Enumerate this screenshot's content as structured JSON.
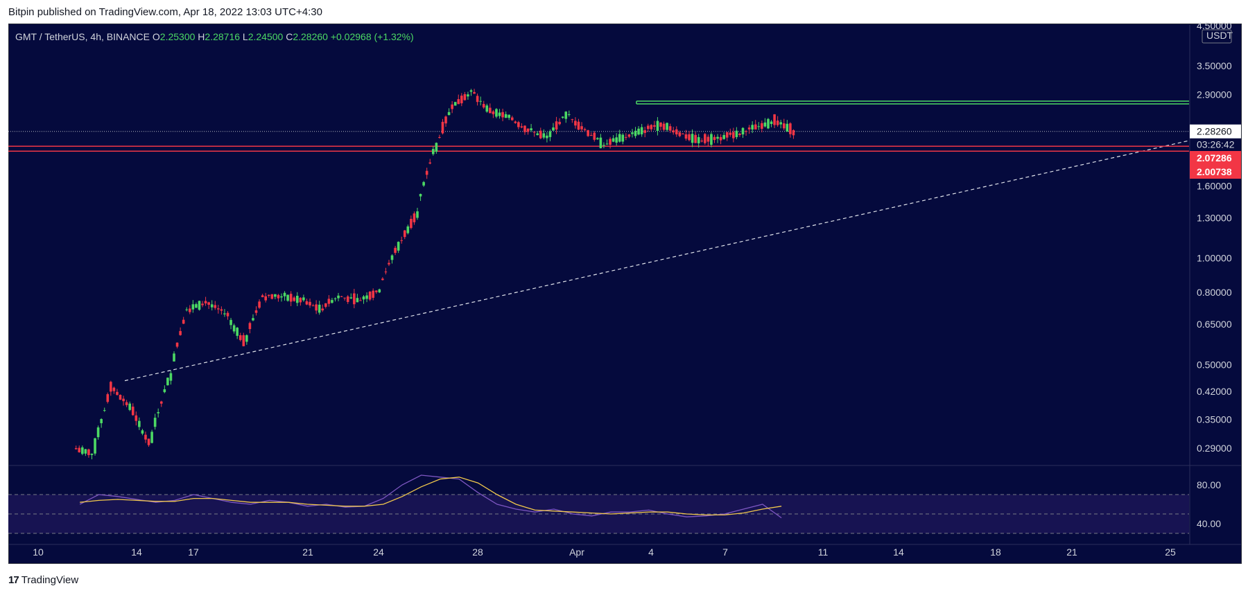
{
  "header": {
    "caption": "Bitpin published on TradingView.com, Apr 18, 2022 13:03 UTC+4:30"
  },
  "legend": {
    "symbol": "GMT / TetherUS, 4h, BINANCE",
    "open_label": "O",
    "open": "2.25300",
    "high_label": "H",
    "high": "2.28716",
    "low_label": "L",
    "low": "2.24500",
    "close_label": "C",
    "close": "2.28260",
    "change": "+0.02968 (+1.32%)"
  },
  "footer": {
    "brand": "TradingView"
  },
  "colors": {
    "background": "#050a3d",
    "up": "#4cd964",
    "down": "#f23645",
    "resistance": "#4cd964",
    "support": "#f23645",
    "rsi": "#7e57c2",
    "rsi_ma": "#f2c94c"
  },
  "chart_data": [
    {
      "type": "candlestick",
      "title": "GMT / TetherUS, 4h, BINANCE",
      "currency": "USDT",
      "scale": "log",
      "ylim": [
        0.26,
        4.5
      ],
      "x_ticks": [
        "10",
        "14",
        "17",
        "21",
        "24",
        "28",
        "Apr",
        "4",
        "7",
        "11",
        "14",
        "18",
        "21",
        "25"
      ],
      "y_ticks": [
        "4.50000",
        "3.50000",
        "2.90000",
        "1.60000",
        "1.30000",
        "1.00000",
        "0.80000",
        "0.65000",
        "0.50000",
        "0.42000",
        "0.35000",
        "0.29000"
      ],
      "price_series_approx": {
        "dates": [
          "Mar 12",
          "Mar 13",
          "Mar 14",
          "Mar 15",
          "Mar 16",
          "Mar 17",
          "Mar 18",
          "Mar 19",
          "Mar 20",
          "Mar 21",
          "Mar 22",
          "Mar 23",
          "Mar 24",
          "Mar 25",
          "Mar 26",
          "Mar 27",
          "Mar 28",
          "Mar 29",
          "Mar 30",
          "Mar 31",
          "Apr 1",
          "Apr 2",
          "Apr 3",
          "Apr 4",
          "Apr 5",
          "Apr 6",
          "Apr 7",
          "Apr 8",
          "Apr 9",
          "Apr 10",
          "Apr 11",
          "Apr 12",
          "Apr 13",
          "Apr 14",
          "Apr 15",
          "Apr 16",
          "Apr 17",
          "Apr 18"
        ],
        "close": [
          0.28,
          0.43,
          0.38,
          0.3,
          0.45,
          0.72,
          0.75,
          0.7,
          0.58,
          0.78,
          0.78,
          0.76,
          0.72,
          0.78,
          0.76,
          0.8,
          1.05,
          1.3,
          2.0,
          2.7,
          2.95,
          2.6,
          2.5,
          2.3,
          2.2,
          2.55,
          2.3,
          2.1,
          2.2,
          2.3,
          2.4,
          2.25,
          2.15,
          2.2,
          2.25,
          2.35,
          2.45,
          2.28
        ]
      },
      "last_price": "2.28260",
      "countdown": "03:26:42",
      "horizontal_levels": [
        {
          "name": "resistance",
          "value": 2.78
        },
        {
          "name": "support-upper",
          "value": 2.07286,
          "label": "2.07286"
        },
        {
          "name": "support-lower",
          "value": 2.00738,
          "label": "2.00738"
        }
      ],
      "trendline": {
        "from": [
          "Mar 13",
          0.45
        ],
        "to": [
          "Apr 25",
          2.15
        ],
        "style": "dashed"
      }
    },
    {
      "type": "line",
      "indicator": "RSI",
      "ylim": [
        20,
        100
      ],
      "y_ticks": [
        "80.00",
        "40.00"
      ],
      "bands": [
        70,
        50,
        30
      ],
      "series": [
        {
          "values": [
            60,
            70,
            68,
            65,
            62,
            64,
            70,
            66,
            62,
            60,
            64,
            62,
            58,
            60,
            57,
            58,
            66,
            80,
            90,
            88,
            86,
            72,
            60,
            55,
            52,
            55,
            50,
            48,
            52,
            52,
            54,
            50,
            47,
            48,
            50,
            55,
            60,
            46
          ]
        },
        {
          "values": [
            62,
            64,
            65,
            64,
            63,
            63,
            66,
            66,
            64,
            62,
            62,
            62,
            60,
            59,
            58,
            58,
            60,
            68,
            78,
            86,
            88,
            82,
            70,
            60,
            54,
            53,
            52,
            51,
            50,
            51,
            52,
            52,
            50,
            49,
            49,
            51,
            55,
            58
          ]
        }
      ]
    }
  ]
}
